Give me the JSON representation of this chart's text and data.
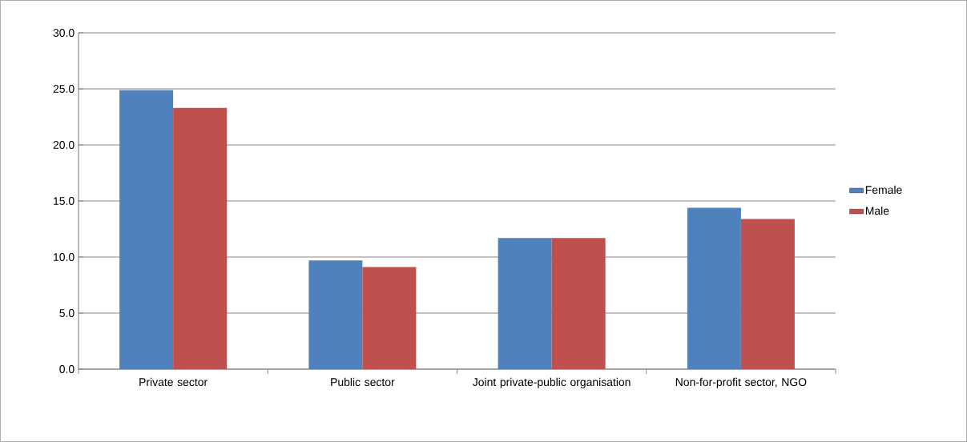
{
  "chart_data": {
    "type": "bar",
    "categories": [
      "Private sector",
      "Public sector",
      "Joint private-public organisation",
      "Non-for-profit sector, NGO"
    ],
    "series": [
      {
        "name": "Female",
        "color": "#4f81bd",
        "values": [
          24.9,
          9.7,
          11.7,
          14.4
        ]
      },
      {
        "name": "Male",
        "color": "#c0504d",
        "values": [
          23.3,
          9.1,
          11.7,
          13.4
        ]
      }
    ],
    "ylim": [
      0,
      30
    ],
    "yticks": [
      {
        "value": 0,
        "label": "0.0"
      },
      {
        "value": 5,
        "label": "5.0"
      },
      {
        "value": 10,
        "label": "10.0"
      },
      {
        "value": 15,
        "label": "15.0"
      },
      {
        "value": 20,
        "label": "20.0"
      },
      {
        "value": 25,
        "label": "25.0"
      },
      {
        "value": 30,
        "label": "30.0"
      }
    ],
    "grid": "y",
    "legend": "right"
  }
}
